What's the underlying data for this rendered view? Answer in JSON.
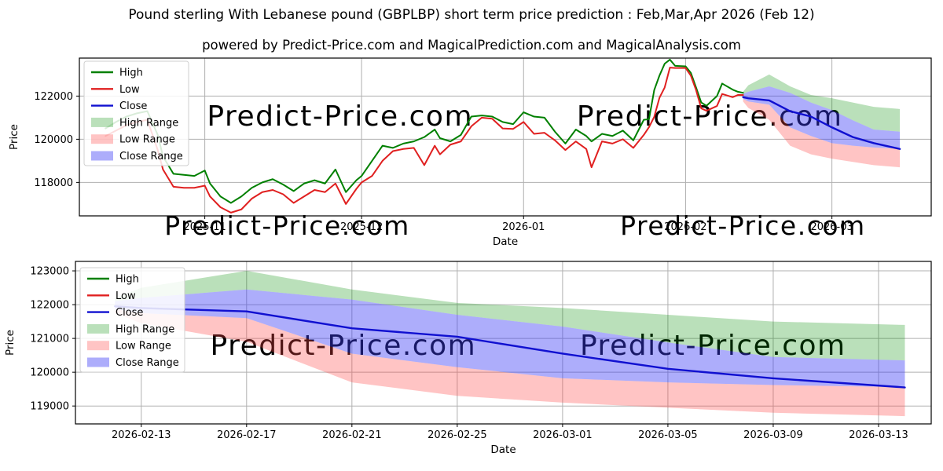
{
  "page_title": "Pound sterling With Lebanese pound (GBPLBP) short term price prediction : Feb,Mar,Apr 2026 (Feb 12)",
  "subtitle": "powered by Predict-Price.com and MagicalPrediction.com and MagicalAnalysis.com",
  "watermark_text": "Predict-Price.com",
  "colors": {
    "high": "#008000",
    "low": "#e02020",
    "close": "#1010d0",
    "high_range": "rgba(0,140,0,0.27)",
    "low_range": "rgba(255,70,70,0.32)",
    "close_range": "rgba(60,60,245,0.42)",
    "grid": "#b0b0b0",
    "spine": "#000000",
    "watermark": "rgba(0,0,0,0.09)"
  },
  "chart_data": {
    "type": "line",
    "legend_entries": [
      {
        "label": "High",
        "swatch": "line",
        "color": "high"
      },
      {
        "label": "Low",
        "swatch": "line",
        "color": "low"
      },
      {
        "label": "Close",
        "swatch": "line",
        "color": "close"
      },
      {
        "label": "High Range",
        "swatch": "patch",
        "color": "high_range"
      },
      {
        "label": "Low Range",
        "swatch": "patch",
        "color": "low_range"
      },
      {
        "label": "Close Range",
        "swatch": "patch",
        "color": "close_range"
      }
    ],
    "history": {
      "dates": [
        "2025-10-13",
        "2025-10-15",
        "2025-10-17",
        "2025-10-19",
        "2025-10-21",
        "2025-10-23",
        "2025-10-24",
        "2025-10-26",
        "2025-10-28",
        "2025-10-30",
        "2025-11-01",
        "2025-11-02",
        "2025-11-04",
        "2025-11-06",
        "2025-11-08",
        "2025-11-10",
        "2025-11-12",
        "2025-11-14",
        "2025-11-16",
        "2025-11-18",
        "2025-11-20",
        "2025-11-22",
        "2025-11-24",
        "2025-11-26",
        "2025-11-28",
        "2025-11-30",
        "2025-12-01",
        "2025-12-03",
        "2025-12-05",
        "2025-12-07",
        "2025-12-09",
        "2025-12-11",
        "2025-12-13",
        "2025-12-15",
        "2025-12-16",
        "2025-12-18",
        "2025-12-20",
        "2025-12-22",
        "2025-12-24",
        "2025-12-26",
        "2025-12-28",
        "2025-12-30",
        "2026-01-01",
        "2026-01-03",
        "2026-01-05",
        "2026-01-07",
        "2026-01-09",
        "2026-01-11",
        "2026-01-13",
        "2026-01-14",
        "2026-01-16",
        "2026-01-18",
        "2026-01-20",
        "2026-01-22",
        "2026-01-24",
        "2026-01-25",
        "2026-01-26",
        "2026-01-27",
        "2026-01-28",
        "2026-01-29",
        "2026-01-30",
        "2026-02-01",
        "2026-02-02",
        "2026-02-03",
        "2026-02-04",
        "2026-02-05",
        "2026-02-07",
        "2026-02-08",
        "2026-02-10",
        "2026-02-11",
        "2026-02-12"
      ],
      "high": [
        120500,
        120800,
        121050,
        121200,
        121300,
        120200,
        119200,
        118400,
        118350,
        118300,
        118550,
        117950,
        117350,
        117050,
        117350,
        117750,
        118000,
        118150,
        117900,
        117600,
        117950,
        118100,
        117950,
        118600,
        117550,
        118100,
        118300,
        119000,
        119700,
        119600,
        119800,
        119900,
        120100,
        120450,
        120050,
        119900,
        120200,
        121050,
        121100,
        121050,
        120800,
        120700,
        121250,
        121050,
        121000,
        120350,
        119800,
        120450,
        120150,
        119900,
        120250,
        120150,
        120400,
        119950,
        120900,
        120930,
        122280,
        122950,
        123500,
        123690,
        123400,
        123380,
        123080,
        122400,
        121700,
        121550,
        122000,
        122580,
        122300,
        122200,
        122150
      ],
      "low": [
        120150,
        120400,
        120650,
        120800,
        120900,
        119500,
        118600,
        117800,
        117750,
        117750,
        117850,
        117350,
        116850,
        116600,
        116750,
        117250,
        117550,
        117650,
        117450,
        117050,
        117350,
        117650,
        117550,
        117950,
        117000,
        117700,
        118000,
        118300,
        119000,
        119450,
        119550,
        119600,
        118800,
        119700,
        119300,
        119750,
        119900,
        120600,
        121000,
        120950,
        120500,
        120480,
        120800,
        120250,
        120300,
        119950,
        119500,
        119900,
        119550,
        118700,
        119900,
        119800,
        120000,
        119600,
        120200,
        120560,
        121040,
        121920,
        122400,
        123320,
        123300,
        123300,
        122950,
        122280,
        121430,
        121320,
        121540,
        122100,
        121950,
        122050,
        122050
      ]
    },
    "prediction": {
      "dates": [
        "2026-02-12",
        "2026-02-13",
        "2026-02-17",
        "2026-02-21",
        "2026-02-25",
        "2026-03-01",
        "2026-03-05",
        "2026-03-09",
        "2026-03-14"
      ],
      "close": [
        121950,
        121900,
        121800,
        121300,
        121050,
        120550,
        120100,
        119820,
        119550
      ],
      "close_upper": [
        122100,
        122200,
        122450,
        122150,
        121700,
        121350,
        120880,
        120450,
        120350
      ],
      "close_lower": [
        121870,
        121750,
        121600,
        120550,
        120150,
        119820,
        119700,
        119620,
        119560
      ],
      "high_upper": [
        122200,
        122500,
        123000,
        122450,
        122050,
        121900,
        121700,
        121500,
        121400
      ],
      "low_lower": [
        121750,
        121450,
        120900,
        119700,
        119300,
        119100,
        118950,
        118800,
        118700
      ]
    },
    "charts": [
      {
        "name": "overview",
        "ylabel": "Price",
        "xlabel": "Date",
        "x_min": "2025-10-08",
        "x_max": "2026-03-20",
        "y_min": 116450,
        "y_max": 123760,
        "x_ticks": [
          {
            "v": "2025-11-01",
            "label": "2025-11"
          },
          {
            "v": "2025-12-01",
            "label": "2025-12"
          },
          {
            "v": "2026-01-01",
            "label": "2026-01"
          },
          {
            "v": "2026-02-01",
            "label": "2026-02"
          },
          {
            "v": "2026-03-01",
            "label": "2026-03"
          }
        ],
        "y_ticks": [
          118000,
          120000,
          122000
        ],
        "layers": [
          {
            "name": "high-range-band",
            "type": "band",
            "src": "prediction",
            "hi": "high_upper",
            "lo": "close_upper",
            "color": "high_range"
          },
          {
            "name": "low-range-band",
            "type": "band",
            "src": "prediction",
            "hi": "close_lower",
            "lo": "low_lower",
            "color": "low_range"
          },
          {
            "name": "close-range-band",
            "type": "band",
            "src": "prediction",
            "hi": "close_upper",
            "lo": "close_lower",
            "color": "close_range"
          },
          {
            "name": "high-line",
            "type": "line",
            "src": "history",
            "y": "high",
            "color": "high",
            "w": 2
          },
          {
            "name": "low-line",
            "type": "line",
            "src": "history",
            "y": "low",
            "color": "low",
            "w": 2
          },
          {
            "name": "close-line",
            "type": "line",
            "src": "prediction",
            "y": "close",
            "color": "close",
            "w": 2.4
          }
        ],
        "watermarks": [
          {
            "fx": 0.306,
            "fy": 0.428,
            "size": 36
          },
          {
            "fx": 0.74,
            "fy": 0.428,
            "size": 36
          },
          {
            "fx": 0.244,
            "fy": 1.12,
            "size": 33
          },
          {
            "fx": 0.779,
            "fy": 1.12,
            "size": 33
          }
        ]
      },
      {
        "name": "forecast",
        "ylabel": "Price",
        "xlabel": "Date",
        "x_min": "2026-02-10T12:00:00",
        "x_max": "2026-03-15",
        "y_min": 118470,
        "y_max": 123280,
        "x_ticks": [
          {
            "v": "2026-02-13",
            "label": "2026-02-13"
          },
          {
            "v": "2026-02-17",
            "label": "2026-02-17"
          },
          {
            "v": "2026-02-21",
            "label": "2026-02-21"
          },
          {
            "v": "2026-02-25",
            "label": "2026-02-25"
          },
          {
            "v": "2026-03-01",
            "label": "2026-03-01"
          },
          {
            "v": "2026-03-05",
            "label": "2026-03-05"
          },
          {
            "v": "2026-03-09",
            "label": "2026-03-09"
          },
          {
            "v": "2026-03-13",
            "label": "2026-03-13"
          }
        ],
        "y_ticks": [
          119000,
          120000,
          121000,
          122000,
          123000
        ],
        "layers": [
          {
            "name": "high-range-band",
            "type": "band",
            "src": "prediction",
            "hi": "high_upper",
            "lo": "close_upper",
            "color": "high_range"
          },
          {
            "name": "low-range-band",
            "type": "band",
            "src": "prediction",
            "hi": "close_lower",
            "lo": "low_lower",
            "color": "low_range"
          },
          {
            "name": "close-range-band",
            "type": "band",
            "src": "prediction",
            "hi": "close_upper",
            "lo": "close_lower",
            "color": "close_range"
          },
          {
            "name": "close-line",
            "type": "line",
            "src": "prediction",
            "y": "close",
            "color": "close",
            "w": 2.4
          }
        ],
        "watermarks": [
          {
            "fx": 0.313,
            "fy": 0.575,
            "size": 36
          },
          {
            "fx": 0.745,
            "fy": 0.575,
            "size": 36
          }
        ]
      }
    ]
  }
}
